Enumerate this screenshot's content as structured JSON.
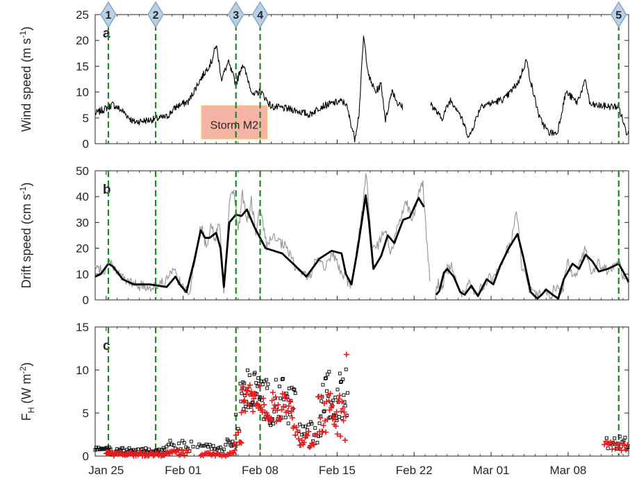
{
  "figure": {
    "x_ticks": [
      "Jan 25",
      "Feb 01",
      "Feb 08",
      "Feb 15",
      "Feb 22",
      "Mar 01",
      "Mar 08"
    ],
    "event_markers": [
      "1",
      "2",
      "3",
      "4",
      "5"
    ],
    "storm_label": "Storm M2"
  },
  "colors": {
    "event_line": "#1a8a1a",
    "marker_fill": "#b9d1e6",
    "marker_stroke": "#8aa7bf",
    "storm_fill": "#f6b3a6",
    "storm_stroke": "#f2c27a",
    "raw_drift": "#9a9a9a",
    "plus_series": "#e41a1c"
  },
  "chart_data": [
    {
      "panel": "a",
      "type": "line",
      "ylabel_main": "Wind speed (m s",
      "ylabel_sup": "-1",
      "ylabel_end": ")",
      "ylim": [
        0,
        25
      ],
      "yticks": [
        "0",
        "5",
        "10",
        "15",
        "20",
        "25"
      ],
      "xlim": [
        0,
        48.5
      ],
      "event_days": [
        1.2,
        5.5,
        12.8,
        15.0,
        47.6
      ],
      "storm_span": [
        9.7,
        15.6
      ],
      "keypoints": [
        [
          0,
          5.8
        ],
        [
          1.2,
          7.1
        ],
        [
          1.6,
          7.6
        ],
        [
          2.5,
          6.3
        ],
        [
          3.5,
          4.2
        ],
        [
          5,
          4.6
        ],
        [
          6.5,
          5.2
        ],
        [
          7.4,
          7.2
        ],
        [
          8.5,
          8.2
        ],
        [
          9.3,
          11.5
        ],
        [
          10.6,
          16
        ],
        [
          11.0,
          19.2
        ],
        [
          11.5,
          12.5
        ],
        [
          12.1,
          15.8
        ],
        [
          12.8,
          11.5
        ],
        [
          13.4,
          15.5
        ],
        [
          14.4,
          9.2
        ],
        [
          15.0,
          10.3
        ],
        [
          16,
          7.2
        ],
        [
          18,
          6.6
        ],
        [
          19.5,
          5.6
        ],
        [
          20.5,
          7.2
        ],
        [
          22.3,
          8.2
        ],
        [
          22.8,
          7.8
        ],
        [
          23.6,
          1
        ],
        [
          24.0,
          6
        ],
        [
          24.4,
          20.7
        ],
        [
          24.9,
          12.8
        ],
        [
          25.5,
          10
        ],
        [
          26.0,
          11.5
        ],
        [
          26.4,
          4.5
        ],
        [
          27.0,
          10.5
        ],
        [
          27.5,
          7.8
        ],
        [
          28,
          7
        ],
        [
          null,
          null
        ],
        [
          30.5,
          7.8
        ],
        [
          31.5,
          4.8
        ],
        [
          32.3,
          8.5
        ],
        [
          33,
          6.5
        ],
        [
          34,
          1.2
        ],
        [
          35.1,
          7.5
        ],
        [
          36,
          7.8
        ],
        [
          37.3,
          8.8
        ],
        [
          38.5,
          12
        ],
        [
          39.2,
          16.3
        ],
        [
          39.6,
          12
        ],
        [
          40.4,
          5
        ],
        [
          41.2,
          2.2
        ],
        [
          42.0,
          2
        ],
        [
          42.8,
          10
        ],
        [
          43.8,
          8
        ],
        [
          44.6,
          12.2
        ],
        [
          45.0,
          7.5
        ],
        [
          46.6,
          7.2
        ],
        [
          47.6,
          7.2
        ],
        [
          48.3,
          2.2
        ],
        [
          48.5,
          2.5
        ]
      ],
      "gaps": [
        [
          28.1,
          30.4
        ]
      ]
    },
    {
      "panel": "b",
      "type": "line",
      "ylabel_main": "Drift speed (cm s",
      "ylabel_sup": "-1",
      "ylabel_end": ")",
      "ylim": [
        0,
        50
      ],
      "yticks": [
        "0",
        "10",
        "20",
        "30",
        "40",
        "50"
      ],
      "xlim": [
        0,
        48.5
      ],
      "event_days": [
        1.2,
        5.5,
        12.8,
        15.0,
        47.6
      ],
      "series": [
        {
          "style": "smoothed",
          "points": [
            [
              0,
              9
            ],
            [
              0.5,
              10
            ],
            [
              1.2,
              14
            ],
            [
              1.6,
              13
            ],
            [
              2.5,
              8
            ],
            [
              3.5,
              6
            ],
            [
              5,
              6
            ],
            [
              6.5,
              5
            ],
            [
              7.3,
              9
            ],
            [
              7.7,
              6
            ],
            [
              8.3,
              3
            ],
            [
              9.0,
              15
            ],
            [
              9.6,
              27
            ],
            [
              10.0,
              24
            ],
            [
              10.4,
              24
            ],
            [
              11.0,
              26
            ],
            [
              11.4,
              20
            ],
            [
              11.7,
              5
            ],
            [
              12.2,
              30
            ],
            [
              12.8,
              33
            ],
            [
              13.3,
              32.5
            ],
            [
              13.8,
              35
            ],
            [
              14.5,
              28
            ],
            [
              15.5,
              20
            ],
            [
              17.0,
              18
            ],
            [
              18.0,
              14
            ],
            [
              19.2,
              9
            ],
            [
              20.4,
              16
            ],
            [
              21.5,
              19
            ],
            [
              22.4,
              18
            ],
            [
              22.8,
              10
            ],
            [
              23.3,
              6
            ],
            [
              23.8,
              18
            ],
            [
              24.3,
              32
            ],
            [
              24.6,
              40.5
            ],
            [
              24.9,
              30
            ],
            [
              25.3,
              12
            ],
            [
              26.0,
              17
            ],
            [
              26.6,
              25
            ],
            [
              27.2,
              22
            ],
            [
              28.0,
              31
            ],
            [
              28.6,
              32
            ],
            [
              29.4,
              39.5
            ],
            [
              29.9,
              36
            ],
            [
              30.4,
              14
            ],
            [
              null,
              null
            ],
            [
              31.0,
              2
            ],
            [
              31.3,
              3.5
            ],
            [
              31.7,
              10.5
            ],
            [
              32.0,
              12
            ],
            [
              32.6,
              9
            ],
            [
              33.2,
              3
            ],
            [
              33.6,
              2
            ],
            [
              34.2,
              5.5
            ],
            [
              34.8,
              1.5
            ],
            [
              35.6,
              8
            ],
            [
              36.2,
              6
            ],
            [
              36.8,
              13
            ],
            [
              37.6,
              20
            ],
            [
              38.4,
              25.5
            ],
            [
              38.9,
              17
            ],
            [
              39.6,
              3
            ],
            [
              40.2,
              0.5
            ],
            [
              40.6,
              2
            ],
            [
              41.0,
              4
            ],
            [
              41.6,
              2
            ],
            [
              42.1,
              0.5
            ],
            [
              42.6,
              8
            ],
            [
              43.4,
              14
            ],
            [
              44.0,
              12
            ],
            [
              44.6,
              17.5
            ],
            [
              45.2,
              15
            ],
            [
              45.8,
              11
            ],
            [
              46.6,
              12
            ],
            [
              47.6,
              14
            ],
            [
              48.0,
              11
            ],
            [
              48.5,
              7
            ]
          ]
        },
        {
          "style": "raw",
          "points": [
            [
              0,
              12
            ],
            [
              0.8,
              11
            ],
            [
              1.4,
              15
            ],
            [
              2.3,
              9
            ],
            [
              3.2,
              6.5
            ],
            [
              4.5,
              5
            ],
            [
              6.0,
              6
            ],
            [
              7.2,
              11
            ],
            [
              8.0,
              4
            ],
            [
              8.6,
              4
            ],
            [
              9.2,
              18
            ],
            [
              9.6,
              30
            ],
            [
              10.1,
              20
            ],
            [
              10.5,
              30
            ],
            [
              10.9,
              23
            ],
            [
              11.3,
              31
            ],
            [
              11.7,
              4
            ],
            [
              12.2,
              38
            ],
            [
              12.6,
              43
            ],
            [
              13.0,
              27
            ],
            [
              13.4,
              41
            ],
            [
              13.8,
              30
            ],
            [
              14.2,
              38
            ],
            [
              14.6,
              27
            ],
            [
              15.0,
              35
            ],
            [
              15.6,
              21
            ],
            [
              16.2,
              24
            ],
            [
              17.4,
              20
            ],
            [
              18.3,
              12
            ],
            [
              19.0,
              10
            ],
            [
              19.6,
              9
            ],
            [
              20.2,
              17
            ],
            [
              20.9,
              13
            ],
            [
              21.6,
              18
            ],
            [
              22.2,
              12
            ],
            [
              22.8,
              9
            ],
            [
              23.2,
              4
            ],
            [
              23.8,
              20
            ],
            [
              24.3,
              35
            ],
            [
              24.6,
              50
            ],
            [
              24.9,
              35
            ],
            [
              25.2,
              18
            ],
            [
              25.8,
              22
            ],
            [
              26.4,
              27
            ],
            [
              26.9,
              17
            ],
            [
              27.6,
              31
            ],
            [
              28.3,
              38
            ],
            [
              28.9,
              31
            ],
            [
              29.4,
              42
            ],
            [
              29.8,
              45
            ],
            [
              30.2,
              20
            ],
            [
              30.5,
              5
            ],
            [
              null,
              null
            ],
            [
              30.9,
              1
            ],
            [
              31.2,
              7
            ],
            [
              31.6,
              4
            ],
            [
              31.8,
              11
            ],
            [
              32.4,
              13
            ],
            [
              32.9,
              6
            ],
            [
              33.4,
              2
            ],
            [
              34.0,
              7
            ],
            [
              34.6,
              1
            ],
            [
              35.2,
              5
            ],
            [
              35.8,
              8
            ],
            [
              36.5,
              10
            ],
            [
              37.1,
              16
            ],
            [
              37.8,
              22
            ],
            [
              38.3,
              35
            ],
            [
              38.8,
              13
            ],
            [
              39.4,
              5
            ],
            [
              40.0,
              2
            ],
            [
              40.7,
              4
            ],
            [
              41.3,
              1
            ],
            [
              41.9,
              5
            ],
            [
              42.4,
              1
            ],
            [
              43.0,
              15
            ],
            [
              43.5,
              8
            ],
            [
              44.1,
              14
            ],
            [
              44.6,
              20
            ],
            [
              45.1,
              10
            ],
            [
              45.7,
              14
            ],
            [
              46.3,
              12
            ],
            [
              46.9,
              11
            ],
            [
              47.6,
              15
            ],
            [
              48.1,
              8
            ],
            [
              48.5,
              6
            ]
          ]
        }
      ]
    },
    {
      "panel": "c",
      "type": "scatter",
      "ylabel_main": "F",
      "ylabel_sub": "H",
      "ylabel_unit": " (W m",
      "ylabel_sup": "-2",
      "ylabel_end": ")",
      "ylim": [
        0,
        15
      ],
      "yticks": [
        "0",
        "5",
        "10",
        "15"
      ],
      "xlim": [
        0,
        48.5
      ],
      "event_days": [
        1.2,
        5.5,
        12.8,
        15.0,
        47.6
      ],
      "square_groups": [
        [
          0,
          1.2,
          0.1,
          0.7,
          1.0
        ],
        [
          1.2,
          6.5,
          0.1,
          0.2,
          1.0
        ],
        [
          6.5,
          9.0,
          0.16,
          0.6,
          1.8
        ],
        [
          9.3,
          12.0,
          0.16,
          0.4,
          1.6
        ],
        [
          12.0,
          12.7,
          0.1,
          1.0,
          2.0
        ],
        [
          12.8,
          13.2,
          0.1,
          1.5,
          5.5
        ],
        [
          13.2,
          15.0,
          0.06,
          5.0,
          10.0
        ],
        [
          15.0,
          18.2,
          0.08,
          3.5,
          9.0
        ],
        [
          18.5,
          20.5,
          0.1,
          1.0,
          4.0
        ],
        [
          20.5,
          23.0,
          0.07,
          3.5,
          10.5
        ],
        [
          46.5,
          48.5,
          0.12,
          0.6,
          2.3
        ]
      ],
      "plus_groups": [
        [
          1.0,
          6.8,
          0.1,
          0.0,
          0.5
        ],
        [
          6.8,
          8.5,
          0.12,
          0.0,
          0.8
        ],
        [
          9.6,
          12.6,
          0.12,
          0.0,
          0.4
        ],
        [
          12.6,
          13.3,
          0.1,
          0.4,
          2.8
        ],
        [
          13.3,
          15.2,
          0.07,
          5.0,
          8.3
        ],
        [
          15.2,
          18.0,
          0.08,
          4.0,
          7.5
        ],
        [
          18.0,
          20.0,
          0.1,
          1.0,
          3.5
        ],
        [
          20.2,
          22.8,
          0.07,
          1.8,
          7.3
        ],
        [
          22.85,
          22.85,
          1,
          11.8,
          11.8
        ],
        [
          46.3,
          48.5,
          0.14,
          0.6,
          1.9
        ]
      ]
    }
  ]
}
